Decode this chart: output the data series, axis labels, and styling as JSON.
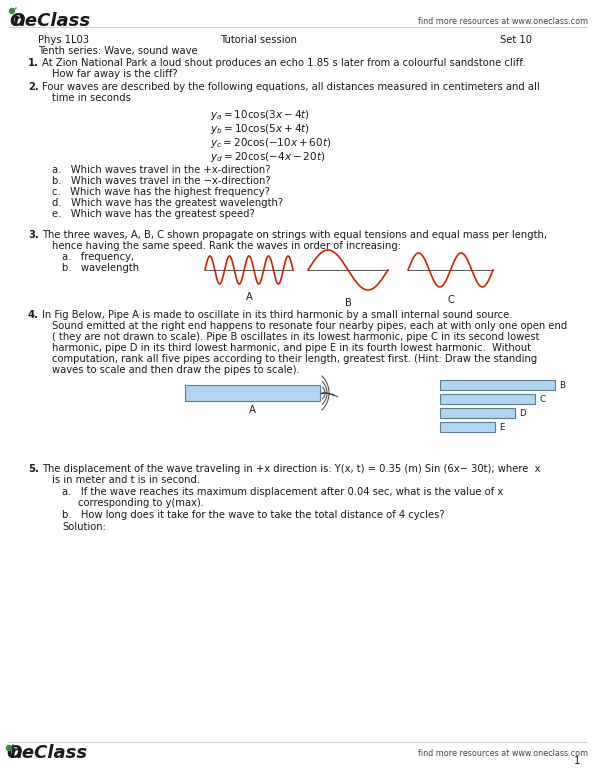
{
  "bg_color": "#ffffff",
  "logo_color": "#3a8a3a",
  "header_right": "find more resources at www.oneclass.com",
  "footer_right": "find more resources at www.oneclass.com",
  "page_number": "1",
  "course": "Phys 1L03",
  "session": "Tutorial session",
  "set": "Set 10",
  "series": "Tenth series: Wave, sound wave",
  "wave_color": "#cc2200",
  "pipe_fill": "#aed6f1",
  "pipe_edge": "#5a7a9a",
  "text_color": "#1a1a1a",
  "gray_line": "#bbbbbb",
  "fs_body": 7.2,
  "fs_logo": 13,
  "fs_eq": 7.5
}
